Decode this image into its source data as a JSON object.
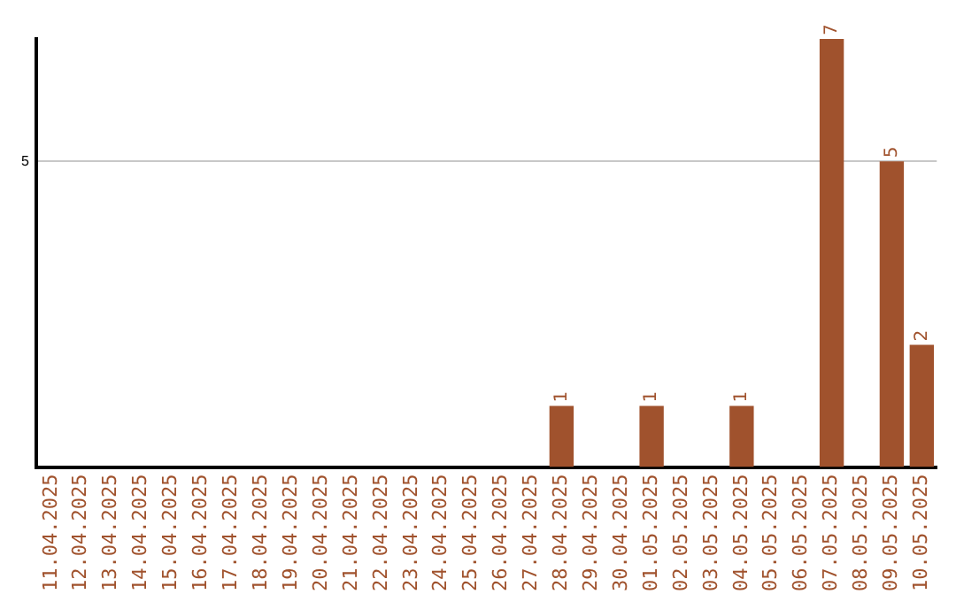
{
  "chart_data": {
    "type": "bar",
    "categories": [
      "11.04.2025",
      "12.04.2025",
      "13.04.2025",
      "14.04.2025",
      "15.04.2025",
      "16.04.2025",
      "17.04.2025",
      "18.04.2025",
      "19.04.2025",
      "20.04.2025",
      "21.04.2025",
      "22.04.2025",
      "23.04.2025",
      "24.04.2025",
      "25.04.2025",
      "26.04.2025",
      "27.04.2025",
      "28.04.2025",
      "29.04.2025",
      "30.04.2025",
      "01.05.2025",
      "02.05.2025",
      "03.05.2025",
      "04.05.2025",
      "05.05.2025",
      "06.05.2025",
      "07.05.2025",
      "08.05.2025",
      "09.05.2025",
      "10.05.2025"
    ],
    "values": [
      null,
      null,
      null,
      null,
      null,
      null,
      null,
      null,
      null,
      null,
      null,
      null,
      null,
      null,
      null,
      null,
      null,
      1,
      null,
      null,
      1,
      null,
      null,
      1,
      null,
      null,
      7,
      null,
      5,
      2
    ],
    "color": "#a0522d",
    "ylim": [
      0,
      7
    ],
    "yticks": [
      5
    ],
    "grid": "y",
    "data_labels": true,
    "legend": false
  }
}
